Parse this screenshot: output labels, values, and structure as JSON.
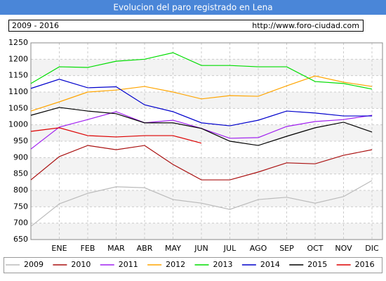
{
  "chart_data": {
    "type": "line",
    "title": "Evolucion del paro registrado en Lena",
    "subtitle": "2009 - 2016",
    "source": "http://www.foro-ciudad.com",
    "categories": [
      null,
      "ENE",
      "FEB",
      "MAR",
      "ABR",
      "MAY",
      "JUN",
      "JUL",
      "AGO",
      "SEP",
      "OCT",
      "NOV",
      "DIC"
    ],
    "ylim": [
      650,
      1250
    ],
    "yticks": [
      650,
      700,
      750,
      800,
      850,
      900,
      950,
      1000,
      1050,
      1100,
      1150,
      1200,
      1250
    ],
    "grid": true,
    "legend": "bottom",
    "series": [
      {
        "name": "2009",
        "color": "#bbbbbb",
        "values": [
          690,
          759,
          791,
          811,
          808,
          772,
          761,
          742,
          772,
          779,
          761,
          781,
          830
        ]
      },
      {
        "name": "2010",
        "color": "#aa1111",
        "values": [
          832,
          903,
          937,
          924,
          937,
          879,
          832,
          832,
          856,
          884,
          881,
          907,
          924
        ]
      },
      {
        "name": "2011",
        "color": "#a020f0",
        "values": [
          926,
          993,
          1016,
          1040,
          1006,
          1014,
          989,
          959,
          961,
          995,
          1010,
          1016,
          1029
        ]
      },
      {
        "name": "2012",
        "color": "#ffa500",
        "values": [
          1042,
          1070,
          1100,
          1106,
          1117,
          1100,
          1079,
          1089,
          1087,
          1119,
          1149,
          1130,
          1117
        ]
      },
      {
        "name": "2013",
        "color": "#00dd00",
        "values": [
          1126,
          1177,
          1175,
          1194,
          1200,
          1220,
          1181,
          1181,
          1177,
          1177,
          1132,
          1126,
          1109
        ]
      },
      {
        "name": "2014",
        "color": "#0000cc",
        "values": [
          1111,
          1139,
          1113,
          1116,
          1061,
          1040,
          1006,
          997,
          1014,
          1042,
          1036,
          1027,
          1027
        ]
      },
      {
        "name": "2015",
        "color": "#000000",
        "values": [
          1029,
          1053,
          1042,
          1034,
          1006,
          1006,
          989,
          950,
          937,
          965,
          991,
          1008,
          978
        ]
      },
      {
        "name": "2016",
        "color": "#dd0000",
        "values": [
          980,
          991,
          967,
          963,
          967,
          967,
          944,
          null,
          null,
          null,
          null,
          null,
          null
        ]
      }
    ]
  }
}
